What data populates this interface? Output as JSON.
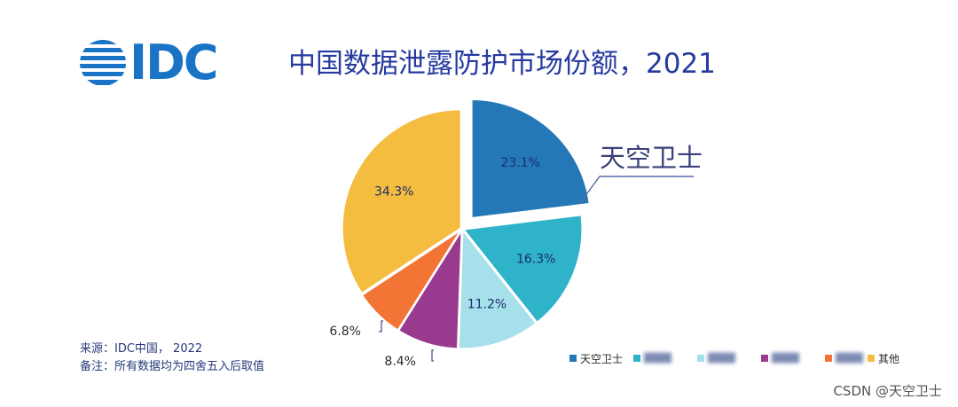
{
  "header": {
    "logo_text": "IDC",
    "title": "中国数据泄露防护市场份额，2021"
  },
  "colors": {
    "brand_blue": "#1a74c6",
    "title_blue": "#263aa0"
  },
  "chart_data": {
    "type": "pie",
    "title": "中国数据泄露防护市场份额，2021",
    "unit": "%",
    "start_angle_deg": 0,
    "direction": "clockwise",
    "slices": [
      {
        "name": "天空卫士",
        "value": 23.1,
        "label": "23.1%",
        "color": "#2478b8",
        "exploded": true,
        "label_position": "inside",
        "legend_blurred": false
      },
      {
        "name": "",
        "value": 16.3,
        "label": "16.3%",
        "color": "#2eb3c9",
        "exploded": false,
        "label_position": "inside",
        "legend_blurred": true
      },
      {
        "name": "",
        "value": 11.2,
        "label": "11.2%",
        "color": "#a6e0ea",
        "exploded": false,
        "label_position": "inside",
        "legend_blurred": true
      },
      {
        "name": "",
        "value": 8.4,
        "label": "8.4%",
        "color": "#993a8f",
        "exploded": false,
        "label_position": "outside",
        "legend_blurred": true
      },
      {
        "name": "",
        "value": 6.8,
        "label": "6.8%",
        "color": "#f37535",
        "exploded": false,
        "label_position": "outside",
        "legend_blurred": true
      },
      {
        "name": "其他",
        "value": 34.3,
        "label": "34.3%",
        "color": "#f4bd3f",
        "exploded": false,
        "label_position": "inside",
        "legend_blurred": false
      }
    ],
    "callout": {
      "text": "天空卫士"
    },
    "legend": {
      "placement": "bottom-right",
      "items": [
        {
          "label": "天空卫士",
          "color": "#2478b8",
          "blurred": false
        },
        {
          "label": "",
          "color": "#2eb3c9",
          "blurred": true
        },
        {
          "label": "",
          "color": "#a6e0ea",
          "blurred": true
        },
        {
          "label": "",
          "color": "#993a8f",
          "blurred": true
        },
        {
          "label": "",
          "color": "#f37535",
          "blurred": true
        },
        {
          "label": "其他",
          "color": "#f4bd3f",
          "blurred": false
        }
      ]
    }
  },
  "footnote": {
    "source": "来源：IDC中国，  2022",
    "note": "备注：所有数据均为四舍五入后取值"
  },
  "watermark": "CSDN @天空卫士"
}
